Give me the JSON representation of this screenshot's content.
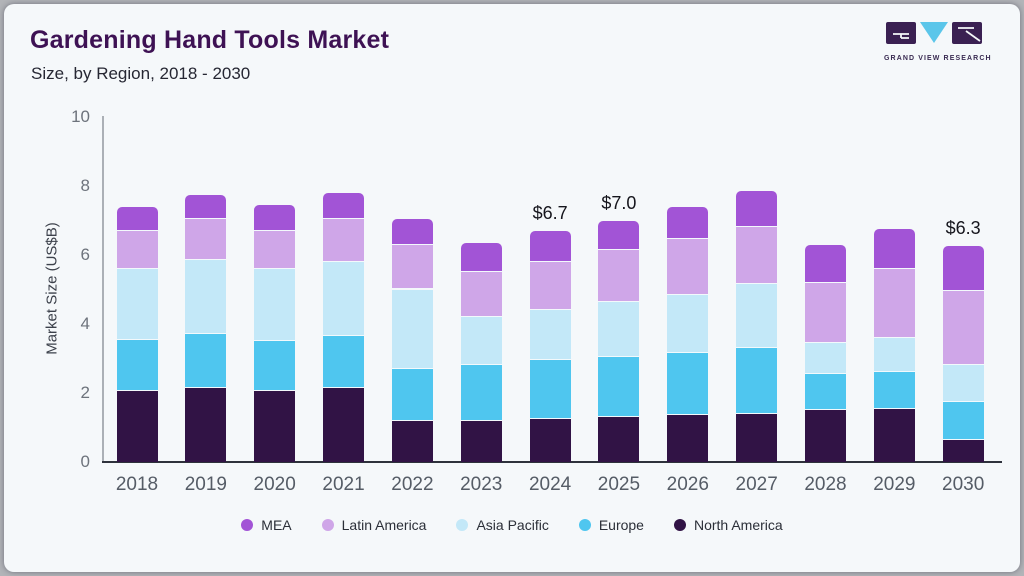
{
  "header": {
    "title": "Gardening Hand Tools Market",
    "subtitle": "Size, by Region, 2018 - 2030",
    "logo": {
      "brand": "GRAND VIEW RESEARCH"
    }
  },
  "chart_data": {
    "type": "bar",
    "stacked": true,
    "title": "Gardening Hand Tools Market",
    "subtitle": "Size, by Region, 2018 - 2030",
    "xlabel": "",
    "ylabel": "Market Size (US$B)",
    "ylim": [
      0,
      10
    ],
    "yticks": [
      0,
      2,
      4,
      6,
      8,
      10
    ],
    "grid": false,
    "legend_position": "bottom",
    "categories": [
      "2018",
      "2019",
      "2020",
      "2021",
      "2022",
      "2023",
      "2024",
      "2025",
      "2026",
      "2027",
      "2028",
      "2029",
      "2030"
    ],
    "series": [
      {
        "name": "North America",
        "color": "#311345",
        "values": [
          2.05,
          2.15,
          2.05,
          2.15,
          1.2,
          1.2,
          1.25,
          1.3,
          1.35,
          1.4,
          1.5,
          1.55,
          0.65
        ]
      },
      {
        "name": "Europe",
        "color": "#4fc6ef",
        "values": [
          1.5,
          1.55,
          1.45,
          1.5,
          1.5,
          1.6,
          1.7,
          1.75,
          1.8,
          1.9,
          1.05,
          1.05,
          1.1
        ]
      },
      {
        "name": "Asia Pacific",
        "color": "#c3e8f8",
        "values": [
          2.05,
          2.15,
          2.1,
          2.15,
          2.3,
          1.4,
          1.45,
          1.6,
          1.7,
          1.85,
          0.9,
          1.0,
          1.05
        ]
      },
      {
        "name": "Latin America",
        "color": "#cfa6e8",
        "values": [
          1.1,
          1.2,
          1.1,
          1.25,
          1.3,
          1.3,
          1.4,
          1.5,
          1.6,
          1.65,
          1.75,
          2.0,
          2.15
        ]
      },
      {
        "name": "MEA",
        "color": "#a254d6",
        "values": [
          0.7,
          0.7,
          0.75,
          0.75,
          0.75,
          0.85,
          0.9,
          0.85,
          0.95,
          1.05,
          1.1,
          1.15,
          1.3
        ]
      }
    ],
    "legend_order": [
      "MEA",
      "Latin America",
      "Asia Pacific",
      "Europe",
      "North America"
    ],
    "annotations": [
      {
        "category": "2024",
        "label": "$6.7"
      },
      {
        "category": "2025",
        "label": "$7.0"
      },
      {
        "category": "2030",
        "label": "$6.3"
      }
    ]
  },
  "colors": {
    "card_background": "#f5f8fa",
    "frame": "#b2b4b8",
    "title_text": "#3e1254",
    "subtitle_text": "#262733",
    "axis_tick_text": "#6d737c",
    "x_axis_line": "#2e323c",
    "y_axis_line": "#abb0b6",
    "value_label_text": "#15151c",
    "logo_purple": "#3a2052",
    "logo_blue": "#5bc6ea"
  }
}
